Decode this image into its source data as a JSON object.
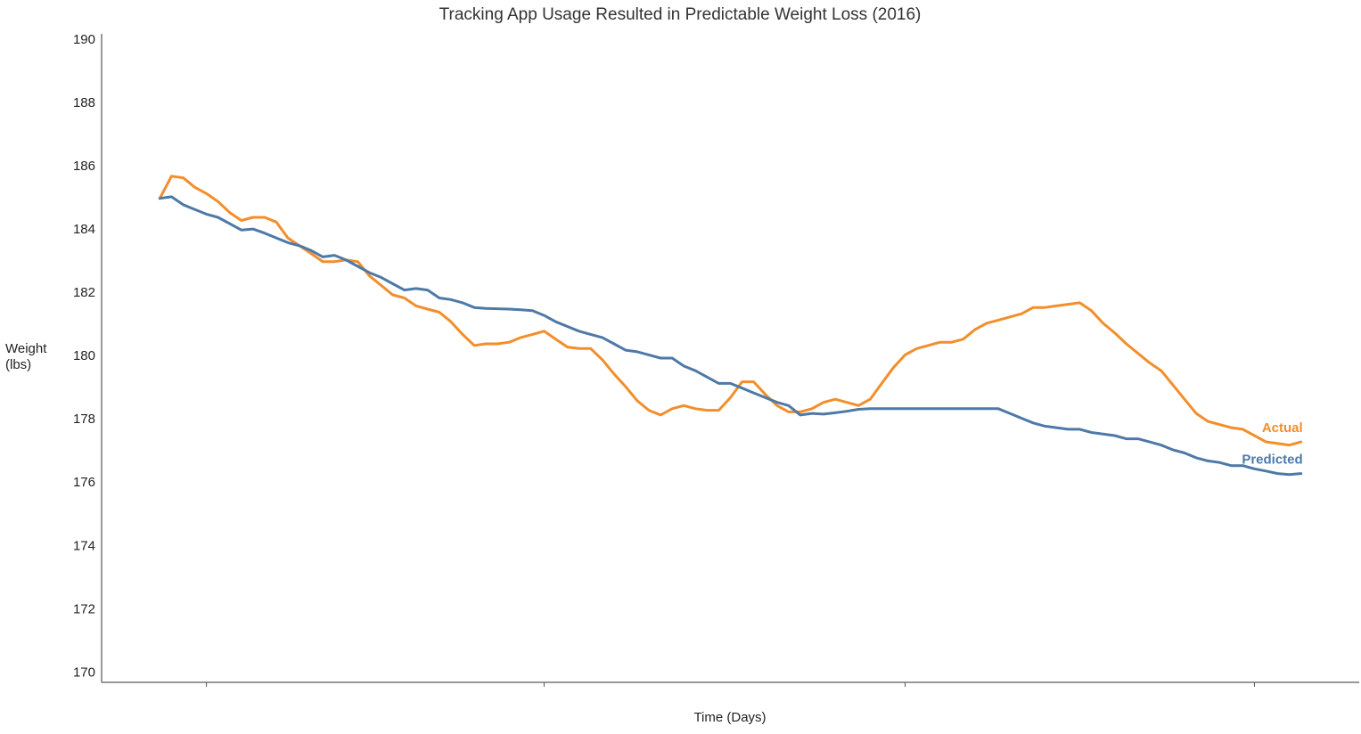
{
  "chart_data": {
    "type": "line",
    "title": "Tracking App Usage Resulted in Predictable Weight Loss (2016)",
    "x_label": "Time (Days)",
    "y_label": [
      "Weight",
      "(lbs)"
    ],
    "x": [
      0,
      1,
      2,
      3,
      4,
      5,
      6,
      7,
      8,
      9,
      10,
      11,
      12,
      13,
      14,
      15,
      16,
      17,
      18,
      19,
      20,
      21,
      22,
      23,
      24,
      25,
      26,
      27,
      28,
      29,
      30,
      31,
      32,
      33,
      34,
      35,
      36,
      37,
      38,
      39,
      40,
      41,
      42,
      43,
      44,
      45,
      46,
      47,
      48,
      49,
      50,
      51,
      52,
      53,
      54,
      55,
      56,
      57,
      58,
      59,
      60,
      61,
      62,
      63,
      64,
      65,
      66,
      67,
      68,
      69,
      70,
      71,
      72,
      73,
      74,
      75,
      76,
      77,
      78,
      79,
      80,
      81,
      82,
      83,
      84,
      85,
      86,
      87,
      88,
      89,
      90,
      91,
      92,
      93,
      94,
      95,
      96,
      97,
      98
    ],
    "series": [
      {
        "name": "Actual",
        "color": "#f28e2b",
        "values": [
          185.0,
          185.7,
          185.65,
          185.35,
          185.15,
          184.9,
          184.55,
          184.3,
          184.4,
          184.4,
          184.25,
          183.75,
          183.5,
          183.25,
          183.0,
          183.0,
          183.05,
          183.0,
          182.55,
          182.25,
          181.95,
          181.85,
          181.6,
          181.5,
          181.4,
          181.1,
          180.7,
          180.35,
          180.4,
          180.4,
          180.45,
          180.6,
          180.7,
          180.8,
          180.55,
          180.3,
          180.25,
          180.25,
          179.9,
          179.45,
          179.05,
          178.6,
          178.3,
          178.15,
          178.35,
          178.45,
          178.35,
          178.3,
          178.3,
          178.7,
          179.2,
          179.2,
          178.8,
          178.45,
          178.25,
          178.25,
          178.35,
          178.55,
          178.65,
          178.55,
          178.45,
          178.65,
          179.15,
          179.65,
          180.05,
          180.25,
          180.35,
          180.45,
          180.45,
          180.55,
          180.85,
          181.05,
          181.15,
          181.25,
          181.35,
          181.55,
          181.55,
          181.6,
          181.65,
          181.7,
          181.45,
          181.05,
          180.75,
          180.4,
          180.1,
          179.8,
          179.55,
          179.1,
          178.65,
          178.2,
          177.95,
          177.85,
          177.75,
          177.7,
          177.5,
          177.3,
          177.25,
          177.2,
          177.3
        ]
      },
      {
        "name": "Predicted",
        "color": "#4e79a7",
        "values": [
          185.0,
          185.05,
          184.8,
          184.65,
          184.5,
          184.4,
          184.2,
          184.0,
          184.03,
          183.9,
          183.75,
          183.6,
          183.5,
          183.35,
          183.15,
          183.2,
          183.05,
          182.85,
          182.65,
          182.5,
          182.3,
          182.1,
          182.15,
          182.1,
          181.85,
          181.8,
          181.7,
          181.55,
          181.52,
          181.51,
          181.5,
          181.48,
          181.45,
          181.3,
          181.1,
          180.95,
          180.8,
          180.7,
          180.6,
          180.4,
          180.2,
          180.15,
          180.05,
          179.95,
          179.95,
          179.7,
          179.55,
          179.35,
          179.15,
          179.15,
          179.0,
          178.85,
          178.7,
          178.55,
          178.45,
          178.15,
          178.2,
          178.18,
          178.22,
          178.27,
          178.33,
          178.35,
          178.35,
          178.35,
          178.35,
          178.35,
          178.35,
          178.35,
          178.35,
          178.35,
          178.35,
          178.35,
          178.35,
          178.2,
          178.05,
          177.9,
          177.8,
          177.75,
          177.7,
          177.7,
          177.6,
          177.55,
          177.5,
          177.4,
          177.4,
          177.3,
          177.2,
          177.05,
          176.95,
          176.8,
          176.7,
          176.65,
          176.55,
          176.55,
          176.45,
          176.38,
          176.3,
          176.27,
          176.3
        ]
      }
    ],
    "xlim": [
      -5,
      103
    ],
    "xticks": [
      4,
      33,
      64,
      94
    ],
    "ylim": [
      169.7,
      190.2
    ],
    "yticks": [
      170,
      172,
      174,
      176,
      178,
      180,
      182,
      184,
      186,
      188,
      190
    ],
    "grid": false
  }
}
